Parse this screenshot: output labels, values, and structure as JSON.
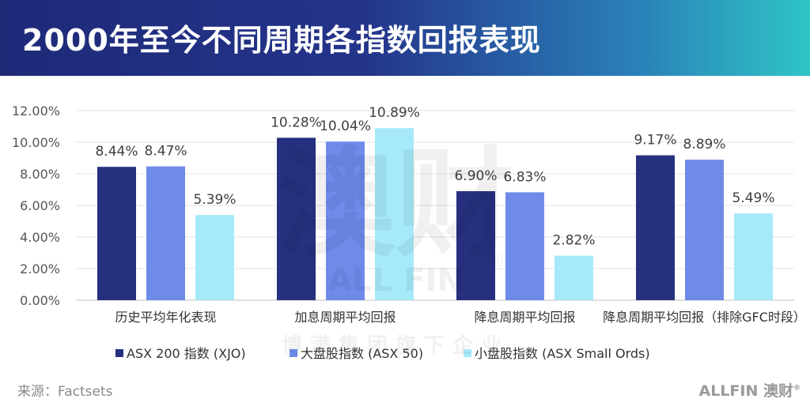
{
  "header": {
    "title": "2000年至今不同周期各指数回报表现"
  },
  "chart_data": {
    "type": "bar",
    "categories": [
      "历史平均年化表现",
      "加息周期平均回报",
      "降息周期平均回报",
      "降息周期平均回报（排除GFC时段）"
    ],
    "series": [
      {
        "name": "ASX 200 指数 (XJO)",
        "values": [
          8.44,
          10.28,
          6.9,
          9.17
        ],
        "labels": [
          "8.44%",
          "10.28%",
          "6.90%",
          "9.17%"
        ],
        "color": "#27307f"
      },
      {
        "name": "大盘股指数 (ASX 50)",
        "values": [
          8.47,
          10.04,
          6.83,
          8.89
        ],
        "labels": [
          "8.47%",
          "10.04%",
          "6.83%",
          "8.89%"
        ],
        "color": "#6e8bea"
      },
      {
        "name": "小盘股指数 (ASX Small Ords)",
        "values": [
          5.39,
          10.89,
          2.82,
          5.49
        ],
        "labels": [
          "5.39%",
          "10.89%",
          "2.82%",
          "5.49%"
        ],
        "color": "#a6e9f9"
      }
    ],
    "yticks": [
      "0.00%",
      "2.00%",
      "4.00%",
      "6.00%",
      "8.00%",
      "10.00%",
      "12.00%"
    ],
    "ylim": [
      0,
      12
    ],
    "grid": true,
    "legend_position": "bottom"
  },
  "footer": {
    "source": "来源：Factsets",
    "logo_text": "ALLFIN 澳财",
    "logo_mark": "®"
  },
  "watermark": {
    "main": "澳财",
    "sub_en": "ALL FIN",
    "reg": "®",
    "sub_cn": "博满集团旗下企业"
  }
}
